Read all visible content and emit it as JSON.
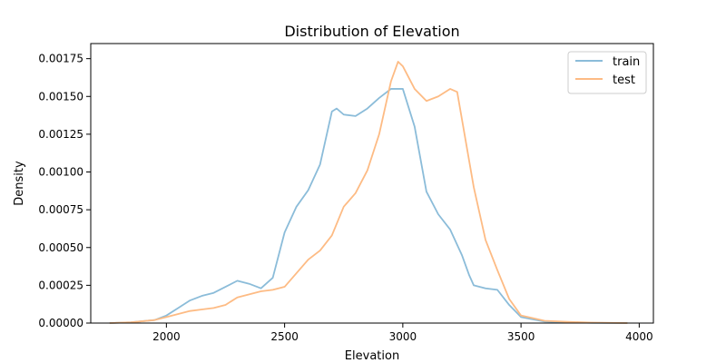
{
  "chart_data": {
    "type": "line",
    "title": "Distribution of Elevation",
    "xlabel": "Elevation",
    "ylabel": "Density",
    "xlim": [
      1680,
      4060
    ],
    "ylim": [
      0,
      0.00185
    ],
    "x_ticks": [
      2000,
      2500,
      3000,
      3500,
      4000
    ],
    "y_ticks": [
      0,
      0.00025,
      0.0005,
      0.00075,
      0.001,
      0.00125,
      0.0015,
      0.00175
    ],
    "x_tick_labels": [
      "2000",
      "2500",
      "3000",
      "3500",
      "4000"
    ],
    "y_tick_labels": [
      "0.00000",
      "0.00025",
      "0.00050",
      "0.00075",
      "0.00100",
      "0.00125",
      "0.00150",
      "0.00175"
    ],
    "grid": false,
    "legend_position": "top-right",
    "series": [
      {
        "name": "train",
        "color": "#8bbcd9",
        "x": [
          1760,
          1850,
          1950,
          2000,
          2050,
          2100,
          2150,
          2200,
          2250,
          2300,
          2350,
          2400,
          2450,
          2500,
          2550,
          2600,
          2650,
          2700,
          2720,
          2750,
          2800,
          2850,
          2900,
          2950,
          3000,
          3050,
          3100,
          3150,
          3200,
          3250,
          3280,
          3300,
          3350,
          3400,
          3450,
          3500,
          3600,
          3700,
          3800,
          3950
        ],
        "y": [
          0,
          5e-06,
          2e-05,
          5e-05,
          0.0001,
          0.00015,
          0.00018,
          0.0002,
          0.00024,
          0.00028,
          0.00026,
          0.00023,
          0.0003,
          0.0006,
          0.00077,
          0.00088,
          0.00105,
          0.0014,
          0.00142,
          0.00138,
          0.00137,
          0.00142,
          0.00149,
          0.00155,
          0.00155,
          0.0013,
          0.00087,
          0.00072,
          0.00062,
          0.00045,
          0.00032,
          0.00025,
          0.00023,
          0.00022,
          0.00012,
          4e-05,
          1e-05,
          5e-06,
          2e-06,
          0
        ]
      },
      {
        "name": "test",
        "color": "#fdbb84",
        "x": [
          1760,
          1850,
          1950,
          2000,
          2050,
          2100,
          2150,
          2200,
          2250,
          2300,
          2350,
          2400,
          2450,
          2500,
          2550,
          2600,
          2650,
          2700,
          2750,
          2800,
          2850,
          2900,
          2950,
          2980,
          3000,
          3050,
          3100,
          3150,
          3200,
          3230,
          3250,
          3300,
          3350,
          3400,
          3450,
          3500,
          3600,
          3700,
          3800,
          3950
        ],
        "y": [
          0,
          5e-06,
          2e-05,
          4e-05,
          6e-05,
          8e-05,
          9e-05,
          0.0001,
          0.00012,
          0.00017,
          0.00019,
          0.00021,
          0.00022,
          0.00024,
          0.00033,
          0.00042,
          0.00048,
          0.00058,
          0.00077,
          0.00086,
          0.00101,
          0.00125,
          0.0016,
          0.00173,
          0.0017,
          0.00155,
          0.00147,
          0.0015,
          0.00155,
          0.00153,
          0.00135,
          0.0009,
          0.00055,
          0.00035,
          0.00016,
          5e-05,
          1.5e-05,
          8e-06,
          3e-06,
          0
        ]
      }
    ]
  }
}
